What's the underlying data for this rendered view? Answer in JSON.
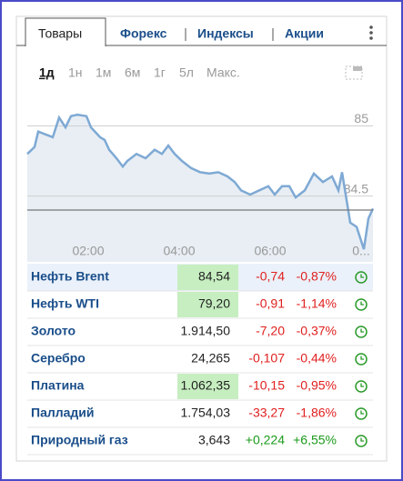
{
  "tabs": [
    "Товары",
    "Форекс",
    "Индексы",
    "Акции"
  ],
  "active_tab": 0,
  "periods": [
    "1д",
    "1н",
    "1м",
    "6м",
    "1г",
    "5л",
    "Макс."
  ],
  "active_period": 0,
  "chart": {
    "type": "line",
    "color": "#7ea9d4",
    "area_color": "#e8eef4",
    "x": [
      0.66,
      0.82,
      0.9,
      1.06,
      1.22,
      1.36,
      1.5,
      1.62,
      1.76,
      1.96,
      2.06,
      2.26,
      2.36,
      2.46,
      2.62,
      2.76,
      2.86,
      3.06,
      3.26,
      3.46,
      3.62,
      3.76,
      3.9,
      4.06,
      4.26,
      4.46,
      4.66,
      4.86,
      5.06,
      5.22,
      5.36,
      5.56,
      5.76,
      5.96,
      6.1,
      6.26,
      6.42,
      6.56,
      6.76,
      6.96,
      7.16,
      7.36,
      7.5,
      7.58,
      7.66,
      7.76,
      7.9,
      8.06,
      8.16,
      8.26
    ],
    "values": [
      84.8,
      84.85,
      84.96,
      84.94,
      84.92,
      85.06,
      84.99,
      85.07,
      85.08,
      85.07,
      84.99,
      84.92,
      84.9,
      84.83,
      84.77,
      84.71,
      84.75,
      84.8,
      84.77,
      84.83,
      84.8,
      84.86,
      84.8,
      84.75,
      84.7,
      84.67,
      84.66,
      84.67,
      84.64,
      84.6,
      84.54,
      84.51,
      84.54,
      84.57,
      84.51,
      84.57,
      84.57,
      84.49,
      84.54,
      84.66,
      84.6,
      84.64,
      84.54,
      84.67,
      84.51,
      84.31,
      84.28,
      84.12,
      84.34,
      84.41
    ],
    "xlim": [
      0.66,
      8.26
    ],
    "ylim": [
      84.03,
      85.25
    ],
    "xticks": [
      {
        "value": 2,
        "label": "02:00"
      },
      {
        "value": 4,
        "label": "04:00"
      },
      {
        "value": 6,
        "label": "06:00"
      },
      {
        "value": 8,
        "label": "0..."
      }
    ],
    "yticks": [
      84.5,
      85
    ],
    "reference_line": 84.4
  },
  "table": {
    "rows": [
      {
        "name": "Нефть Brent",
        "price": "84,54",
        "change": "-0,74",
        "percent": "-0,87%",
        "color": "#e0201f",
        "highlight": true,
        "selected": true
      },
      {
        "name": "Нефть WTI",
        "price": "79,20",
        "change": "-0,91",
        "percent": "-1,14%",
        "color": "#e0201f",
        "highlight": true,
        "selected": false
      },
      {
        "name": "Золото",
        "price": "1.914,50",
        "change": "-7,20",
        "percent": "-0,37%",
        "color": "#e0201f",
        "highlight": false,
        "selected": false
      },
      {
        "name": "Серебро",
        "price": "24,265",
        "change": "-0,107",
        "percent": "-0,44%",
        "color": "#e0201f",
        "highlight": false,
        "selected": false
      },
      {
        "name": "Платина",
        "price": "1.062,35",
        "change": "-10,15",
        "percent": "-0,95%",
        "color": "#e0201f",
        "highlight": true,
        "selected": false
      },
      {
        "name": "Палладий",
        "price": "1.754,03",
        "change": "-33,27",
        "percent": "-1,86%",
        "color": "#e0201f",
        "highlight": false,
        "selected": false
      },
      {
        "name": "Природный газ",
        "price": "3,643",
        "change": "+0,224",
        "percent": "+6,55%",
        "color": "#1a9a1a",
        "highlight": false,
        "selected": false
      }
    ]
  }
}
